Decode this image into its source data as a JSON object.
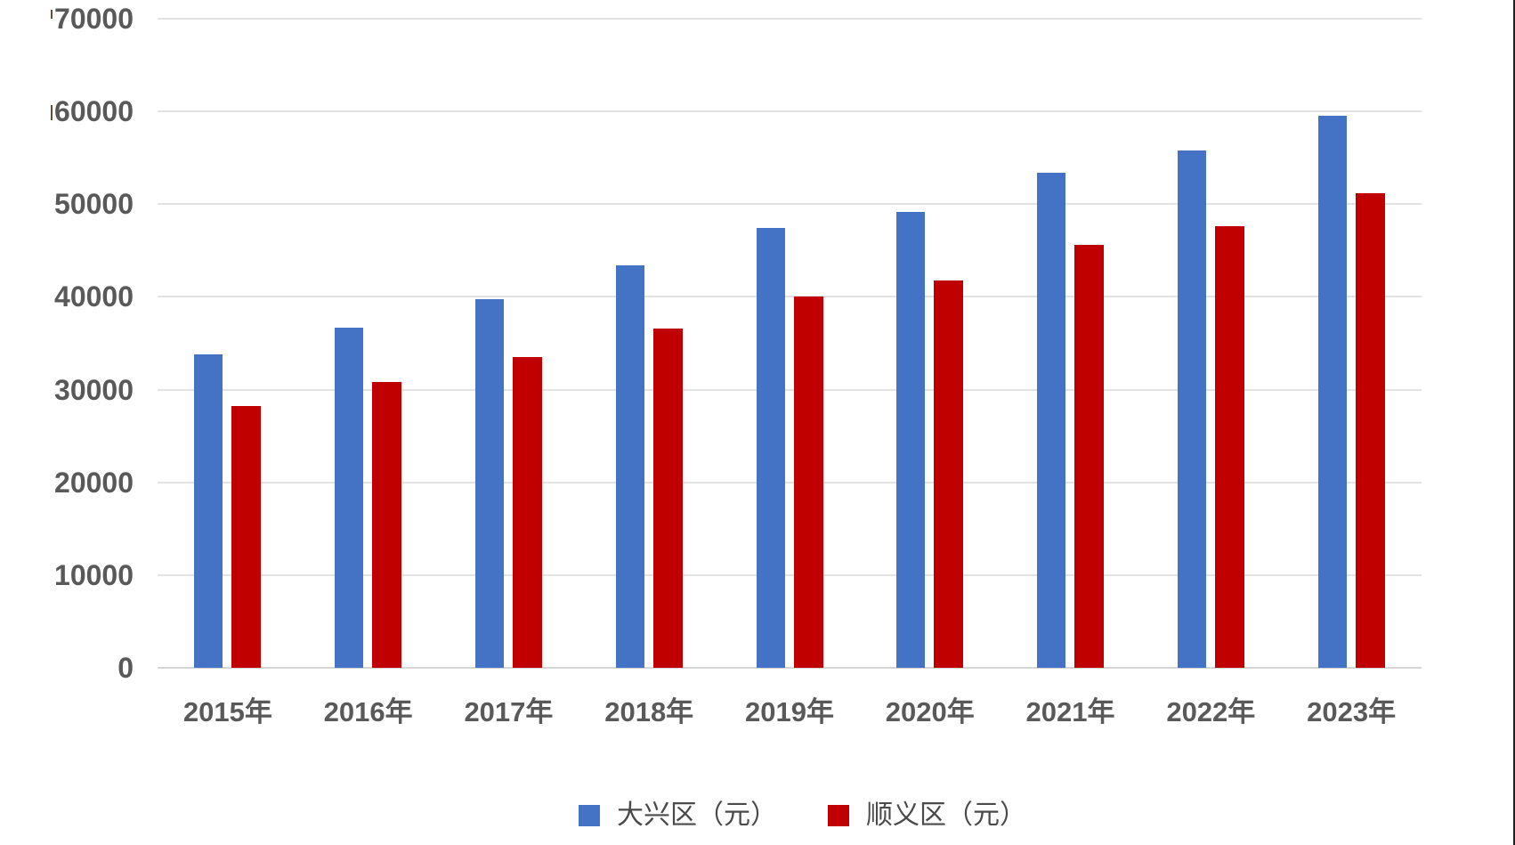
{
  "chart_data": {
    "type": "bar",
    "categories": [
      "2015年",
      "2016年",
      "2017年",
      "2018年",
      "2019年",
      "2020年",
      "2021年",
      "2022年",
      "2023年"
    ],
    "series": [
      {
        "name": "大兴区（元）",
        "color": "#4472C4",
        "values": [
          33800,
          36700,
          39800,
          43400,
          47400,
          49200,
          53400,
          55800,
          59500
        ]
      },
      {
        "name": "顺义区（元）",
        "color": "#C00000",
        "values": [
          28200,
          30800,
          33500,
          36600,
          40000,
          41800,
          45600,
          47600,
          51200
        ]
      }
    ],
    "title": "",
    "xlabel": "",
    "ylabel": "",
    "ylim": [
      0,
      70000
    ],
    "ytick_interval": 10000,
    "yticks": [
      "0",
      "10000",
      "20000",
      "30000",
      "40000",
      "50000",
      "60000",
      "70000"
    ],
    "grid": true,
    "legend_position": "bottom"
  },
  "colors": {
    "series1": "#4472C4",
    "series2": "#C00000",
    "gridline": "#E2E2E2",
    "axis_text": "#595959",
    "legend_text": "#4a4a4a",
    "background": "#FFFFFF",
    "window_edge": "#202020"
  }
}
